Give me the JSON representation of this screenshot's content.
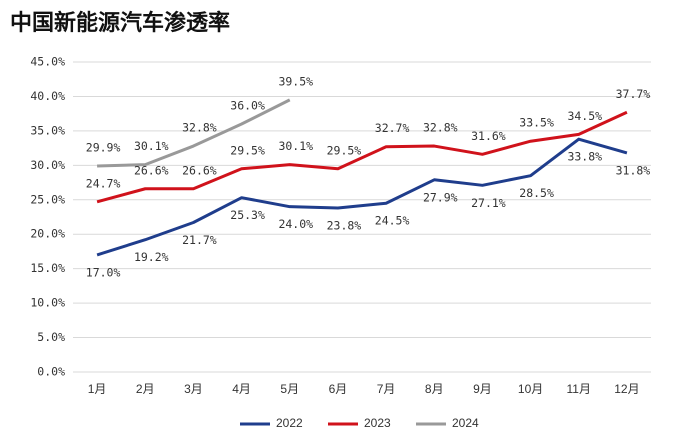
{
  "chart_data": {
    "type": "line",
    "title": "中国新能源汽车渗透率",
    "categories": [
      "1月",
      "2月",
      "3月",
      "4月",
      "5月",
      "6月",
      "7月",
      "8月",
      "9月",
      "10月",
      "11月",
      "12月"
    ],
    "series": [
      {
        "name": "2022",
        "color": "#1f3d8c",
        "values": [
          17.0,
          19.2,
          21.7,
          25.3,
          24.0,
          23.8,
          24.5,
          27.9,
          27.1,
          28.5,
          33.8,
          31.8
        ],
        "value_labels": [
          "17.0%",
          "19.2%",
          "21.7%",
          "25.3%",
          "24.0%",
          "23.8%",
          "24.5%",
          "27.9%",
          "27.1%",
          "28.5%",
          "33.8%",
          "31.8%"
        ]
      },
      {
        "name": "2023",
        "color": "#d0121b",
        "values": [
          24.7,
          26.6,
          26.6,
          29.5,
          30.1,
          29.5,
          32.7,
          32.8,
          31.6,
          33.5,
          34.5,
          37.7
        ],
        "value_labels": [
          "24.7%",
          "26.6%",
          "26.6%",
          "29.5%",
          "30.1%",
          "29.5%",
          "32.7%",
          "32.8%",
          "31.6%",
          "33.5%",
          "34.5%",
          "37.7%"
        ]
      },
      {
        "name": "2024",
        "color": "#999999",
        "values": [
          29.9,
          30.1,
          32.8,
          36.0,
          39.5,
          null,
          null,
          null,
          null,
          null,
          null,
          null
        ],
        "value_labels": [
          "29.9%",
          "30.1%",
          "32.8%",
          "36.0%",
          "39.5%",
          null,
          null,
          null,
          null,
          null,
          null,
          null
        ]
      }
    ],
    "ylim": [
      0,
      45
    ],
    "yticks": [
      {
        "value": 0,
        "label": "0.0%"
      },
      {
        "value": 5,
        "label": "5.0%"
      },
      {
        "value": 10,
        "label": "10.0%"
      },
      {
        "value": 15,
        "label": "15.0%"
      },
      {
        "value": 20,
        "label": "20.0%"
      },
      {
        "value": 25,
        "label": "25.0%"
      },
      {
        "value": 30,
        "label": "30.0%"
      },
      {
        "value": 35,
        "label": "35.0%"
      },
      {
        "value": 40,
        "label": "40.0%"
      },
      {
        "value": 45,
        "label": "45.0%"
      }
    ],
    "grid": true,
    "legend": "bottom"
  }
}
